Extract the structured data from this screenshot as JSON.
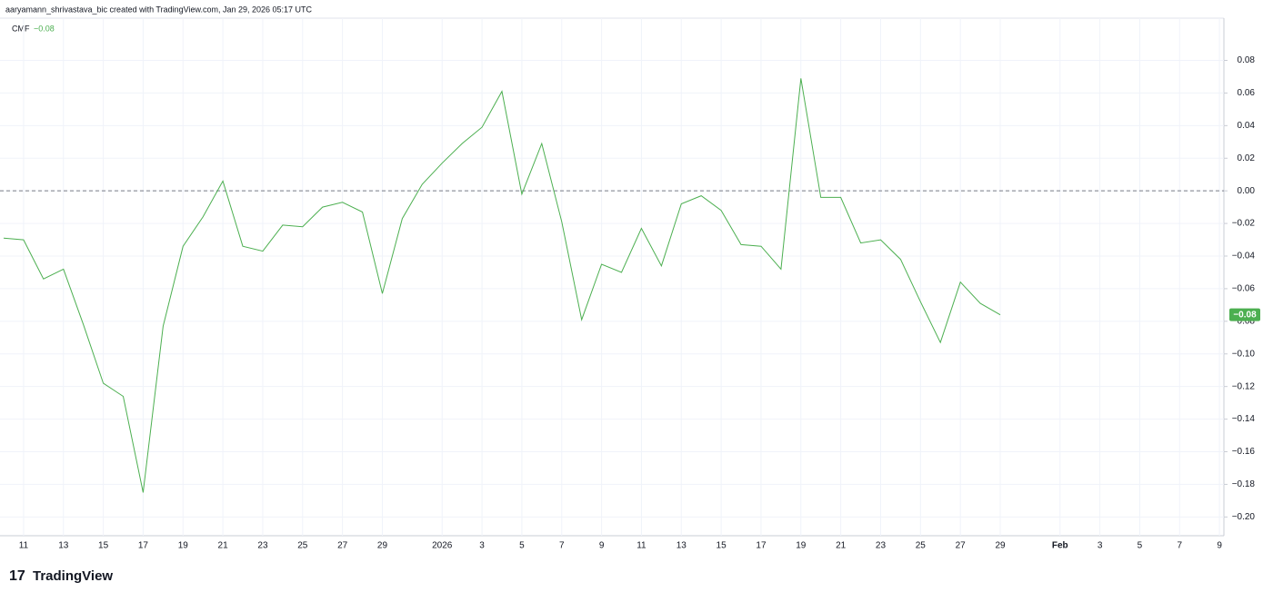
{
  "attribution": "aaryamann_shrivastava_bic created with TradingView.com, Jan 29, 2026 05:17 UTC",
  "brand": "TradingView",
  "chart_data": {
    "type": "line",
    "indicator": {
      "name": "CMF",
      "value_label": "−0.08"
    },
    "categories": [
      null,
      "11",
      null,
      "13",
      null,
      "15",
      null,
      "17",
      null,
      "19",
      null,
      "21",
      null,
      "23",
      null,
      "25",
      null,
      "27",
      null,
      "29",
      null,
      null,
      "2026",
      null,
      "3",
      null,
      "5",
      null,
      "7",
      null,
      "9",
      null,
      "11",
      null,
      "13",
      null,
      "15",
      null,
      "17",
      null,
      "19",
      null,
      "21",
      null,
      "23",
      null,
      "25",
      null,
      "27",
      null,
      "29",
      null,
      null,
      "Feb",
      null,
      "3",
      null,
      "5",
      null,
      "7",
      null,
      "9",
      null
    ],
    "series": [
      {
        "name": "CMF",
        "color": "#4caf50",
        "values": [
          -0.029,
          -0.03,
          -0.054,
          -0.048,
          -0.082,
          -0.118,
          -0.126,
          -0.185,
          -0.083,
          -0.034,
          -0.016,
          0.006,
          -0.034,
          -0.037,
          -0.021,
          -0.022,
          -0.01,
          -0.007,
          -0.013,
          -0.063,
          -0.017,
          0.004,
          0.017,
          0.029,
          0.039,
          0.061,
          -0.002,
          0.029,
          -0.019,
          -0.079,
          -0.045,
          -0.05,
          -0.023,
          -0.046,
          -0.008,
          -0.003,
          -0.012,
          -0.033,
          -0.034,
          -0.048,
          0.069,
          -0.004,
          -0.004,
          -0.032,
          -0.03,
          -0.042,
          -0.068,
          -0.093,
          -0.056,
          -0.069,
          -0.076,
          null,
          null,
          null,
          null,
          null,
          null,
          null,
          null,
          null,
          null,
          null,
          null
        ]
      }
    ],
    "ylim": [
      -0.2115,
      0.1059
    ],
    "yticks": [
      0.08,
      0.06,
      0.04,
      0.02,
      {
        "value": 0,
        "label": "0.00"
      },
      {
        "value": -0.02,
        "label": "−0.02"
      },
      {
        "value": -0.04,
        "label": "−0.04"
      },
      {
        "value": -0.06,
        "label": "−0.06"
      },
      {
        "value": -0.08,
        "label": "−0.08"
      },
      {
        "value": -0.1,
        "label": "−0.10"
      },
      {
        "value": -0.12,
        "label": "−0.12"
      },
      {
        "value": -0.14,
        "label": "−0.14"
      },
      {
        "value": -0.16,
        "label": "−0.16"
      },
      {
        "value": -0.18,
        "label": "−0.18"
      },
      {
        "value": -0.2,
        "label": "−0.20"
      }
    ],
    "grid": true,
    "zero_line": true
  }
}
